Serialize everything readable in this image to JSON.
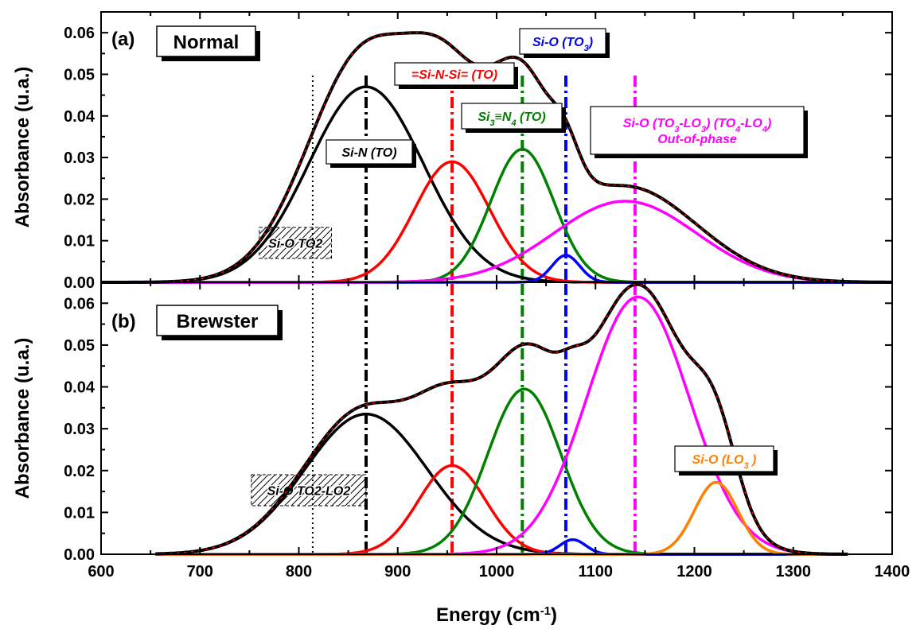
{
  "chart_data": [
    {
      "panel_label": "(a)",
      "box_label": "Normal",
      "type": "line",
      "xlim": [
        600,
        1400
      ],
      "ylim": [
        0,
        0.065
      ],
      "yticks": [
        "0.00",
        "0.01",
        "0.02",
        "0.03",
        "0.04",
        "0.05",
        "0.06"
      ],
      "ylabel": "Absorbance (u.a.)",
      "components": [
        {
          "assignment": "Si-N (TO)",
          "color": "#000000",
          "center": 868,
          "height": 0.047,
          "sigma": 58
        },
        {
          "assignment": "=Si-N-Si= (TO)",
          "color": "#ff0000",
          "center": 955,
          "height": 0.029,
          "sigma": 38
        },
        {
          "assignment": "Si3≡N4 (TO)",
          "color": "#008000",
          "center": 1026,
          "height": 0.032,
          "sigma": 32
        },
        {
          "assignment": "Si-O (TO3)",
          "color": "#0000ff",
          "center": 1070,
          "height": 0.0065,
          "sigma": 14
        },
        {
          "assignment": "Si-O (TO3-LO3) (TO4-LO4) Out-of-phase",
          "color": "#ff00ff",
          "center": 1130,
          "height": 0.0195,
          "sigma": 72
        }
      ],
      "envelope": {
        "color": "#000000",
        "fit_color": "#ff0000",
        "x_start": 600,
        "x_end": 1400,
        "peak": 0.06
      },
      "markers": [
        {
          "x": 814,
          "color": "#000000",
          "style": "dotted"
        },
        {
          "x": 868,
          "color": "#000000",
          "style": "dash-dot"
        },
        {
          "x": 955,
          "color": "#ff0000",
          "style": "dash-dot"
        },
        {
          "x": 1026,
          "color": "#008000",
          "style": "dash-dot"
        },
        {
          "x": 1070,
          "color": "#0000ff",
          "style": "dash-dot"
        },
        {
          "x": 1140,
          "color": "#ff00ff",
          "style": "dash-dot"
        }
      ],
      "annotations": [
        {
          "lines": [
            [
              {
                "t": "Si-N (TO)"
              }
            ]
          ],
          "color": "#000000"
        },
        {
          "lines": [
            [
              {
                "t": "=Si-N-Si= (TO)"
              }
            ]
          ],
          "color": "#ff0000"
        },
        {
          "lines": [
            [
              {
                "t": "Si"
              },
              {
                "t": "3",
                "sub": true
              },
              {
                "t": "≡N"
              },
              {
                "t": "4",
                "sub": true
              },
              {
                "t": " (TO)"
              }
            ]
          ],
          "color": "#008000"
        },
        {
          "lines": [
            [
              {
                "t": "Si-O (TO"
              },
              {
                "t": "3",
                "sub": true
              },
              {
                "t": ")"
              }
            ]
          ],
          "color": "#0000ff"
        },
        {
          "lines": [
            [
              {
                "t": "Si-O (TO"
              },
              {
                "t": "3",
                "sub": true
              },
              {
                "t": "-LO"
              },
              {
                "t": "3",
                "sub": true
              },
              {
                "t": ") (TO"
              },
              {
                "t": "4",
                "sub": true
              },
              {
                "t": "-LO"
              },
              {
                "t": "4",
                "sub": true
              },
              {
                "t": ")"
              }
            ],
            [
              {
                "t": "Out-of-phase"
              }
            ]
          ],
          "color": "#ff00ff"
        }
      ],
      "region": {
        "label": "Si-O TO2",
        "x_from": 760,
        "x_to": 833
      }
    },
    {
      "panel_label": "(b)",
      "box_label": "Brewster",
      "type": "line",
      "xlim": [
        600,
        1400
      ],
      "ylim": [
        0,
        0.065
      ],
      "yticks": [
        "0.00",
        "0.01",
        "0.02",
        "0.03",
        "0.04",
        "0.05",
        "0.06"
      ],
      "ylabel": "Absorbance (u.a.)",
      "xlabel": "Energy (cm-1)",
      "xticks": [
        "600",
        "700",
        "800",
        "900",
        "1000",
        "1100",
        "1200",
        "1300",
        "1400"
      ],
      "components": [
        {
          "color": "#000000",
          "center": 868,
          "height": 0.0335,
          "sigma": 62
        },
        {
          "color": "#ff0000",
          "center": 955,
          "height": 0.0212,
          "sigma": 34
        },
        {
          "color": "#008000",
          "center": 1028,
          "height": 0.0395,
          "sigma": 37
        },
        {
          "color": "#0000ff",
          "center": 1077,
          "height": 0.0035,
          "sigma": 13
        },
        {
          "color": "#ff00ff",
          "center": 1143,
          "height": 0.0615,
          "sigma": 52
        },
        {
          "assignment": "Si-O (LO3)",
          "color": "#ff8000",
          "center": 1222,
          "height": 0.0172,
          "sigma": 22
        }
      ],
      "envelope": {
        "color": "#000000",
        "fit_color": "#ff0000",
        "x_start": 655,
        "x_end": 1355,
        "peak": 0.0645
      },
      "markers": [
        {
          "x": 814,
          "color": "#000000",
          "style": "dotted"
        },
        {
          "x": 868,
          "color": "#000000",
          "style": "dash-dot"
        },
        {
          "x": 955,
          "color": "#ff0000",
          "style": "dash-dot"
        },
        {
          "x": 1026,
          "color": "#008000",
          "style": "dash-dot"
        },
        {
          "x": 1070,
          "color": "#0000ff",
          "style": "dash-dot"
        },
        {
          "x": 1140,
          "color": "#ff00ff",
          "style": "dash-dot"
        }
      ],
      "annotations": [
        {
          "lines": [
            [
              {
                "t": "Si-O (LO"
              },
              {
                "t": "3",
                "sub": true
              },
              {
                "t": " )"
              }
            ]
          ],
          "color": "#ff8000"
        }
      ],
      "region": {
        "label": "Si-O TO2-LO2",
        "x_from": 752,
        "x_to": 868
      }
    }
  ],
  "xlabel_main": "Energy (cm",
  "xlabel_sup": "-1",
  "xlabel_end": ")"
}
